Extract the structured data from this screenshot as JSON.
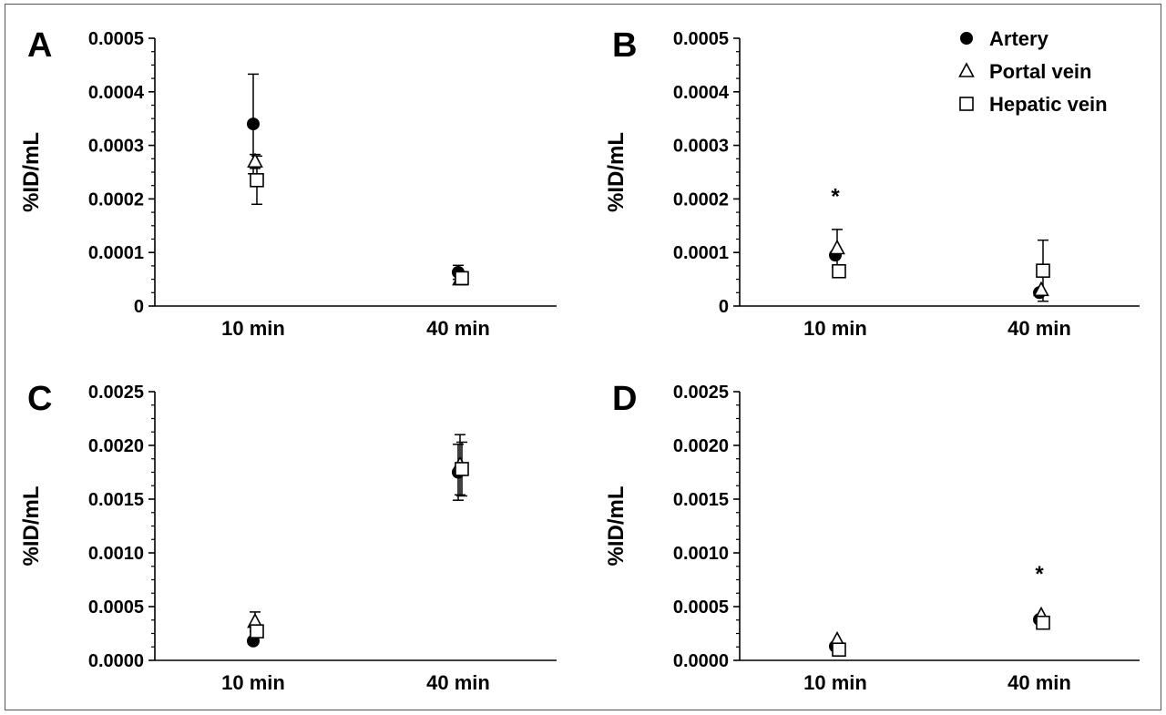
{
  "chart_data": [
    {
      "panel_label": "A",
      "type": "scatter",
      "ylabel": "%ID/mL",
      "ylim": [
        0,
        0.0005
      ],
      "yticks": [
        "0",
        "0.0001",
        "0.0002",
        "0.0003",
        "0.0004",
        "0.0005"
      ],
      "categories": [
        "10 min",
        "40 min"
      ],
      "significance": [],
      "series": [
        {
          "name": "Artery",
          "marker": "circle-filled",
          "values": [
            0.00034,
            6.3e-05
          ],
          "error": [
            9.3e-05,
            1.3e-05
          ]
        },
        {
          "name": "Portal vein",
          "marker": "triangle-open",
          "values": [
            0.00027,
            5e-05
          ],
          "error": [
            1.3e-05,
            8e-06
          ]
        },
        {
          "name": "Hepatic vein",
          "marker": "square-open",
          "values": [
            0.000235,
            5.2e-05
          ],
          "error": [
            4.5e-05,
            1.2e-05
          ]
        }
      ]
    },
    {
      "panel_label": "B",
      "type": "scatter",
      "ylabel": "%ID/mL",
      "ylim": [
        0,
        0.0005
      ],
      "yticks": [
        "0",
        "0.0001",
        "0.0002",
        "0.0003",
        "0.0004",
        "0.0005"
      ],
      "categories": [
        "10 min",
        "40 min"
      ],
      "significance": [
        {
          "category": "10 min",
          "text": "*",
          "y": 0.000208
        }
      ],
      "series": [
        {
          "name": "Artery",
          "marker": "circle-filled",
          "values": [
            9.5e-05,
            2.5e-05
          ],
          "error": [
            0,
            0
          ]
        },
        {
          "name": "Portal vein",
          "marker": "triangle-open",
          "values": [
            0.000108,
            3e-05
          ],
          "error": [
            3.5e-05,
            0
          ]
        },
        {
          "name": "Hepatic vein",
          "marker": "square-open",
          "values": [
            6.5e-05,
            6.6e-05
          ],
          "error": [
            0,
            5.7e-05
          ]
        }
      ]
    },
    {
      "panel_label": "C",
      "type": "scatter",
      "ylabel": "%ID/mL",
      "ylim": [
        0,
        0.0025
      ],
      "yticks": [
        "0.0000",
        "0.0005",
        "0.0010",
        "0.0015",
        "0.0020",
        "0.0025"
      ],
      "categories": [
        "10 min",
        "40 min"
      ],
      "significance": [],
      "series": [
        {
          "name": "Artery",
          "marker": "circle-filled",
          "values": [
            0.00018,
            0.00175
          ],
          "error": [
            0,
            0.00026
          ]
        },
        {
          "name": "Portal vein",
          "marker": "triangle-open",
          "values": [
            0.00036,
            0.00182
          ],
          "error": [
            9e-05,
            0.00028
          ]
        },
        {
          "name": "Hepatic vein",
          "marker": "square-open",
          "values": [
            0.00027,
            0.00178
          ],
          "error": [
            0,
            0.00025
          ]
        }
      ]
    },
    {
      "panel_label": "D",
      "type": "scatter",
      "ylabel": "%ID/mL",
      "ylim": [
        0,
        0.0025
      ],
      "yticks": [
        "0.0000",
        "0.0005",
        "0.0010",
        "0.0015",
        "0.0020",
        "0.0025"
      ],
      "categories": [
        "10 min",
        "40 min"
      ],
      "significance": [
        {
          "category": "40 min",
          "text": "*",
          "y": 0.00082
        }
      ],
      "series": [
        {
          "name": "Artery",
          "marker": "circle-filled",
          "values": [
            0.00013,
            0.00038
          ],
          "error": [
            0,
            0
          ]
        },
        {
          "name": "Portal vein",
          "marker": "triangle-open",
          "values": [
            0.00019,
            0.00042
          ],
          "error": [
            0,
            0
          ]
        },
        {
          "name": "Hepatic vein",
          "marker": "square-open",
          "values": [
            0.0001,
            0.00035
          ],
          "error": [
            0,
            0
          ]
        }
      ]
    }
  ],
  "legend": {
    "placement": "top-right",
    "items": [
      {
        "label": "Artery",
        "marker": "circle-filled"
      },
      {
        "label": "Portal vein",
        "marker": "triangle-open"
      },
      {
        "label": "Hepatic vein",
        "marker": "square-open"
      }
    ]
  }
}
